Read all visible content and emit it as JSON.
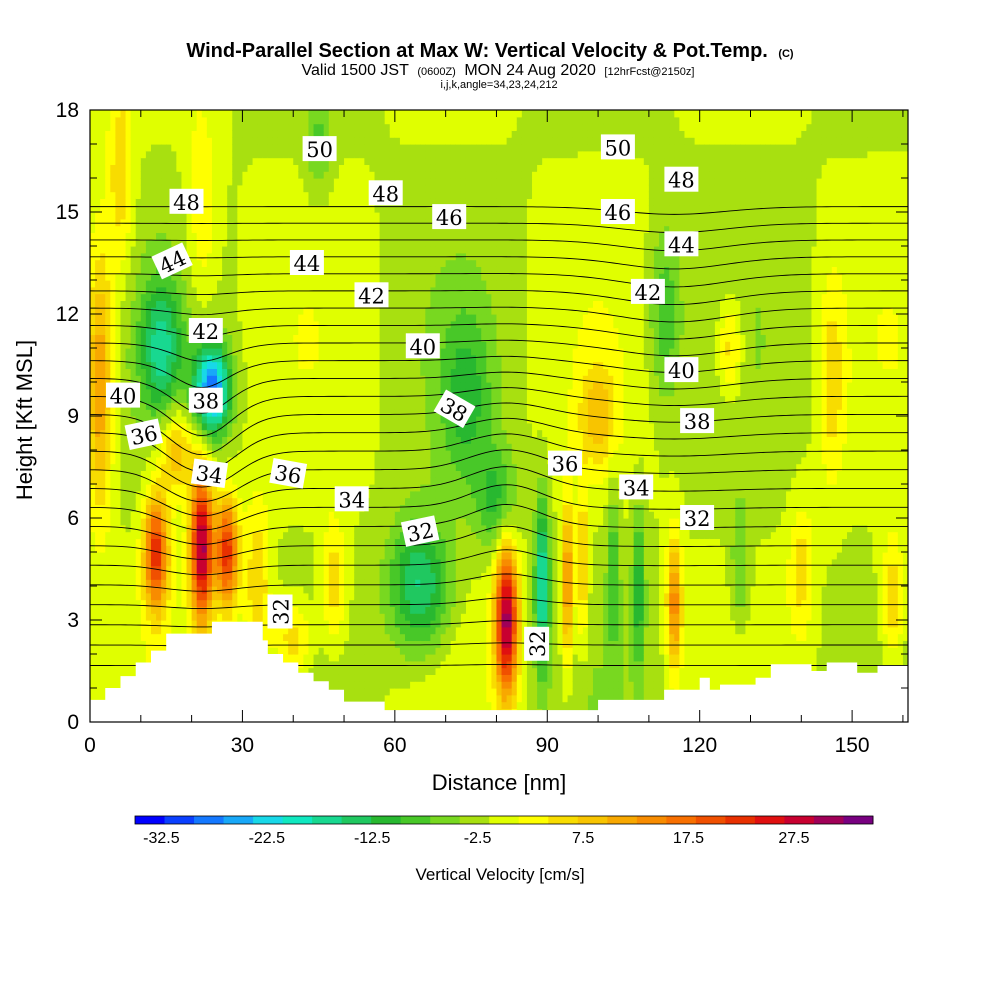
{
  "chart_data": {
    "type": "heatmap",
    "title": "Wind-Parallel Section at Max W: Vertical Velocity & Pot.Temp.",
    "title_mark": "(C)",
    "subtitle": {
      "part1": "Valid 1500 JST",
      "part2": "(0600Z)",
      "part3": "MON 24 Aug 2020",
      "part4": "[12hrFcst@2150z]"
    },
    "subtitle2": "i,j,k,angle=34,23,24,212",
    "xlabel": "Distance [nm]",
    "ylabel": "Height [Kft MSL]",
    "xlim": [
      0,
      161
    ],
    "ylim": [
      0,
      18
    ],
    "x_ticks": [
      "0",
      "30",
      "60",
      "90",
      "120",
      "150"
    ],
    "y_ticks": [
      "0",
      "3",
      "6",
      "9",
      "12",
      "15",
      "18"
    ],
    "colorbar": {
      "label": "Vertical Velocity [cm/s]",
      "tick_labels": [
        "-32.5",
        "-22.5",
        "-12.5",
        "-2.5",
        "7.5",
        "17.5",
        "27.5"
      ],
      "colors": [
        "#0000ff",
        "#0a3fff",
        "#1478ff",
        "#18a8f8",
        "#18d8e8",
        "#10e8c0",
        "#18d890",
        "#20c860",
        "#28b830",
        "#48c828",
        "#78d820",
        "#a8e010",
        "#e0ff00",
        "#ffff00",
        "#f8dc00",
        "#f8c400",
        "#f8a800",
        "#f88c00",
        "#f87000",
        "#f05000",
        "#e83000",
        "#e01010",
        "#c80030",
        "#a00058",
        "#780080"
      ],
      "range": [
        -35,
        35
      ]
    },
    "theta_labels": [
      {
        "text": "50",
        "x": 45.2,
        "y": 16.85,
        "angle": 0
      },
      {
        "text": "50",
        "x": 103.9,
        "y": 16.9,
        "angle": 0
      },
      {
        "text": "48",
        "x": 19.0,
        "y": 15.3,
        "angle": 0
      },
      {
        "text": "48",
        "x": 58.2,
        "y": 15.55,
        "angle": 0
      },
      {
        "text": "48",
        "x": 116.4,
        "y": 15.95,
        "angle": 0
      },
      {
        "text": "46",
        "x": 70.7,
        "y": 14.85,
        "angle": 0
      },
      {
        "text": "46",
        "x": 103.9,
        "y": 15.0,
        "angle": 0
      },
      {
        "text": "44",
        "x": 16.2,
        "y": 13.55,
        "angle": -25
      },
      {
        "text": "44",
        "x": 42.7,
        "y": 13.5,
        "angle": 0
      },
      {
        "text": "44",
        "x": 116.4,
        "y": 14.05,
        "angle": 0
      },
      {
        "text": "42",
        "x": 22.8,
        "y": 11.5,
        "angle": 0
      },
      {
        "text": "42",
        "x": 55.4,
        "y": 12.55,
        "angle": 0
      },
      {
        "text": "42",
        "x": 109.8,
        "y": 12.65,
        "angle": 0
      },
      {
        "text": "40",
        "x": 6.5,
        "y": 9.6,
        "angle": 0
      },
      {
        "text": "40",
        "x": 65.5,
        "y": 11.05,
        "angle": 0
      },
      {
        "text": "40",
        "x": 116.4,
        "y": 10.35,
        "angle": 0
      },
      {
        "text": "38",
        "x": 22.8,
        "y": 9.45,
        "angle": 0
      },
      {
        "text": "38",
        "x": 71.7,
        "y": 9.2,
        "angle": 30
      },
      {
        "text": "38",
        "x": 119.5,
        "y": 8.85,
        "angle": 0
      },
      {
        "text": "36",
        "x": 10.6,
        "y": 8.45,
        "angle": -12
      },
      {
        "text": "36",
        "x": 39.0,
        "y": 7.3,
        "angle": 10
      },
      {
        "text": "36",
        "x": 93.5,
        "y": 7.6,
        "angle": 0
      },
      {
        "text": "34",
        "x": 23.5,
        "y": 7.3,
        "angle": 8
      },
      {
        "text": "34",
        "x": 51.5,
        "y": 6.55,
        "angle": 0
      },
      {
        "text": "34",
        "x": 107.5,
        "y": 6.9,
        "angle": 0
      },
      {
        "text": "32",
        "x": 65.0,
        "y": 5.6,
        "angle": -12
      },
      {
        "text": "32",
        "x": 119.5,
        "y": 6.0,
        "angle": 0
      },
      {
        "text": "32",
        "x": 37.5,
        "y": 3.25,
        "angle": -90
      },
      {
        "text": "32",
        "x": 88.0,
        "y": 2.3,
        "angle": -90
      }
    ]
  }
}
